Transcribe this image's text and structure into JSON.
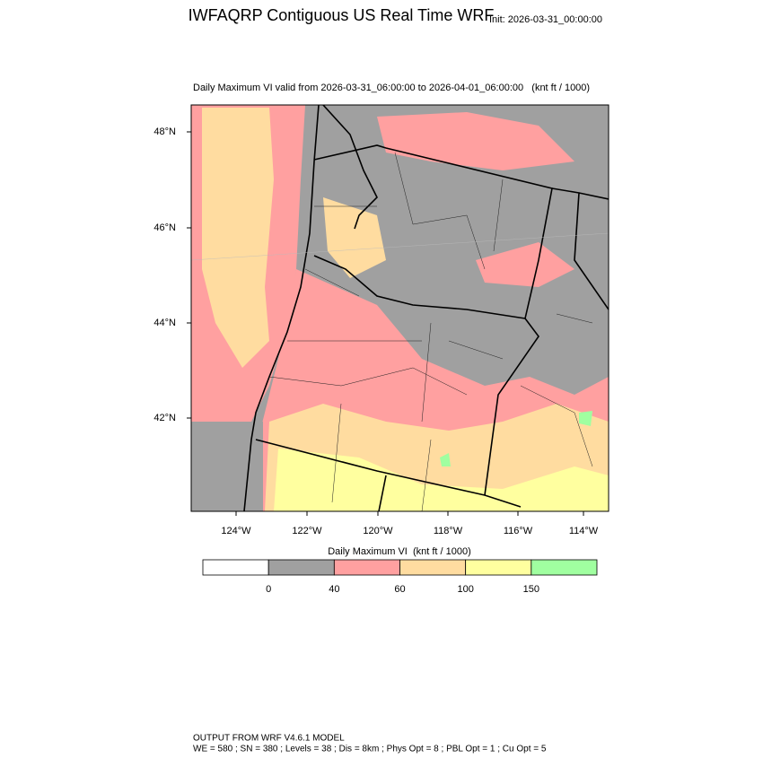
{
  "header": {
    "title": "IWFAQRP Contiguous US Real Time WRF",
    "init": "Init: 2026-03-31_00:00:00"
  },
  "map": {
    "subtitle": "Daily Maximum VI valid from 2026-03-31_06:00:00 to 2026-04-01_06:00:00   (knt ft / 1000)",
    "lat_labels": [
      "48°N",
      "46°N",
      "44°N",
      "42°N"
    ],
    "lon_labels": [
      "124°W",
      "122°W",
      "120°W",
      "118°W",
      "116°W",
      "114°W"
    ]
  },
  "colorbar": {
    "title": "Daily Maximum VI  (knt ft / 1000)",
    "colors": [
      "#ffffff",
      "#a0a0a0",
      "#ffa0a0",
      "#ffdca0",
      "#ffff9f",
      "#a0ffa0"
    ],
    "labels": [
      "0",
      "40",
      "60",
      "100",
      "150"
    ]
  },
  "footer": {
    "lines": [
      "OUTPUT FROM WRF V4.6.1 MODEL",
      "WE = 580 ; SN = 380 ; Levels = 38 ; Dis = 8km ; Phys Opt = 8 ; PBL Opt = 1 ; Cu Opt = 5"
    ]
  }
}
